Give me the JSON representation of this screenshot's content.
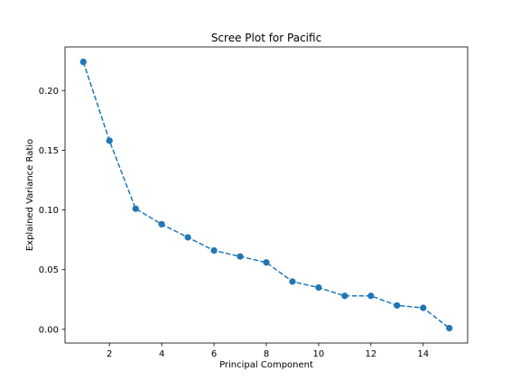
{
  "chart_data": {
    "type": "line",
    "title": "Scree Plot for Pacific",
    "xlabel": "Principal Component",
    "ylabel": "Explained Variance Ratio",
    "x": [
      1,
      2,
      3,
      4,
      5,
      6,
      7,
      8,
      9,
      10,
      11,
      12,
      13,
      14,
      15
    ],
    "series": [
      {
        "values": [
          0.224,
          0.158,
          0.101,
          0.088,
          0.077,
          0.066,
          0.061,
          0.056,
          0.04,
          0.035,
          0.028,
          0.028,
          0.02,
          0.018,
          0.001
        ],
        "color": "#1f77b4",
        "line_style": "dashed",
        "marker": "circle"
      }
    ],
    "xlim": [
      0.3,
      15.7
    ],
    "ylim": [
      -0.0115,
      0.2365
    ],
    "xticks": [
      2,
      4,
      6,
      8,
      10,
      12,
      14
    ],
    "yticks": [
      0.0,
      0.05,
      0.1,
      0.15,
      0.2
    ],
    "ytick_labels": [
      "0.00",
      "0.05",
      "0.10",
      "0.15",
      "0.20"
    ],
    "grid": false,
    "legend": "none"
  }
}
